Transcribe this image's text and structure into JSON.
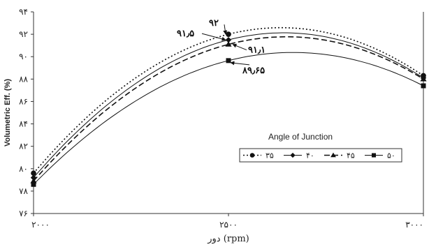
{
  "chart_data": {
    "type": "line",
    "title": "",
    "xlabel": "دور (rpm)",
    "ylabel": "Volumetric Eff. (%)",
    "x": [
      2000,
      2500,
      3000
    ],
    "x_tick_labels": [
      "۲۰۰۰",
      "۲۵۰۰",
      "۳۰۰۰"
    ],
    "xlim": [
      2000,
      3000
    ],
    "ylim": [
      76,
      94
    ],
    "y_ticks": [
      76,
      78,
      80,
      82,
      84,
      86,
      88,
      90,
      92,
      94
    ],
    "y_tick_labels": [
      "۷۶",
      "۷۸",
      "۸۰",
      "۸۲",
      "۸۴",
      "۸۶",
      "۸۸",
      "۹۰",
      "۹۲",
      "۹۴"
    ],
    "grid": false,
    "legend_title": "Angle of Junction",
    "legend_position": "center-right",
    "series": [
      {
        "name": "۳۵",
        "marker": "circle",
        "dash": "dotted",
        "values": [
          79.6,
          92.0,
          88.3
        ]
      },
      {
        "name": "۴۰",
        "marker": "diamond",
        "dash": "solid",
        "values": [
          79.2,
          91.5,
          88.1
        ]
      },
      {
        "name": "۴۵",
        "marker": "triangle",
        "dash": "dashed",
        "values": [
          78.9,
          91.1,
          88.0
        ]
      },
      {
        "name": "۵۰",
        "marker": "square",
        "dash": "solid",
        "values": [
          78.6,
          89.65,
          87.4
        ]
      }
    ],
    "annotations": [
      {
        "text": "۹۲",
        "x": 2500,
        "y": 92.0
      },
      {
        "text": "۹۱٫۵",
        "x": 2500,
        "y": 91.5
      },
      {
        "text": "۹۱٫۱",
        "x": 2500,
        "y": 91.1
      },
      {
        "text": "۸۹٫۶۵",
        "x": 2500,
        "y": 89.65
      }
    ]
  }
}
